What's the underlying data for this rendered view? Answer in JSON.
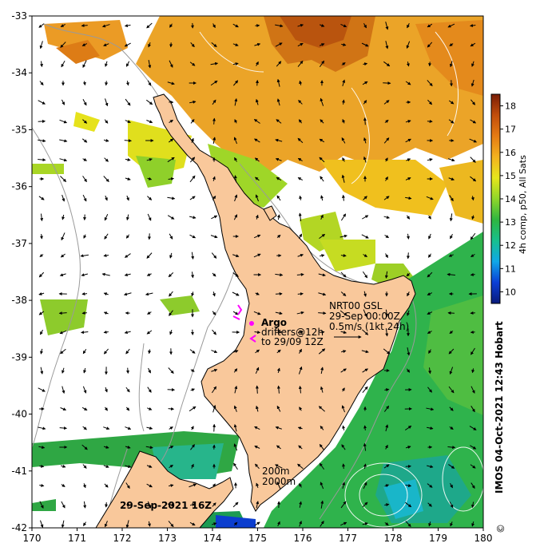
{
  "map": {
    "lon_range": [
      170,
      180
    ],
    "lat_range": [
      -42,
      -33
    ],
    "lon_ticks": [
      "170",
      "171",
      "172",
      "173",
      "174",
      "175",
      "176",
      "177",
      "178",
      "179",
      "180"
    ],
    "lat_ticks": [
      "-33",
      "-34",
      "-35",
      "-36",
      "-37",
      "-38",
      "-39",
      "-40",
      "-41",
      "-42"
    ],
    "land_color": "#f9c89b",
    "coast_color": "#000000",
    "bathy_color": "#9a9a9a"
  },
  "colorbar": {
    "ticks": [
      "10",
      "11",
      "12",
      "13",
      "14",
      "15",
      "16",
      "17",
      "18"
    ],
    "range": [
      9.5,
      18.5
    ],
    "label": "4h comp, p50, All Sats"
  },
  "annotations": {
    "argo_label": "Argo",
    "drifters_line1": "drifters@12h",
    "drifters_line2": "to 29/09 12Z",
    "currents_line1": "NRT00 GSL",
    "currents_line2": "29-Sep 00:00Z",
    "currents_line3": "0.5m/s (1kt 24h)",
    "contour_200": "200m",
    "contour_2000": "2000m",
    "date_label": "29-Sep-2021 16Z"
  },
  "credit": {
    "copyright": "©",
    "text": "IMOS 04-Oct-2021 12:43 Hobart"
  }
}
